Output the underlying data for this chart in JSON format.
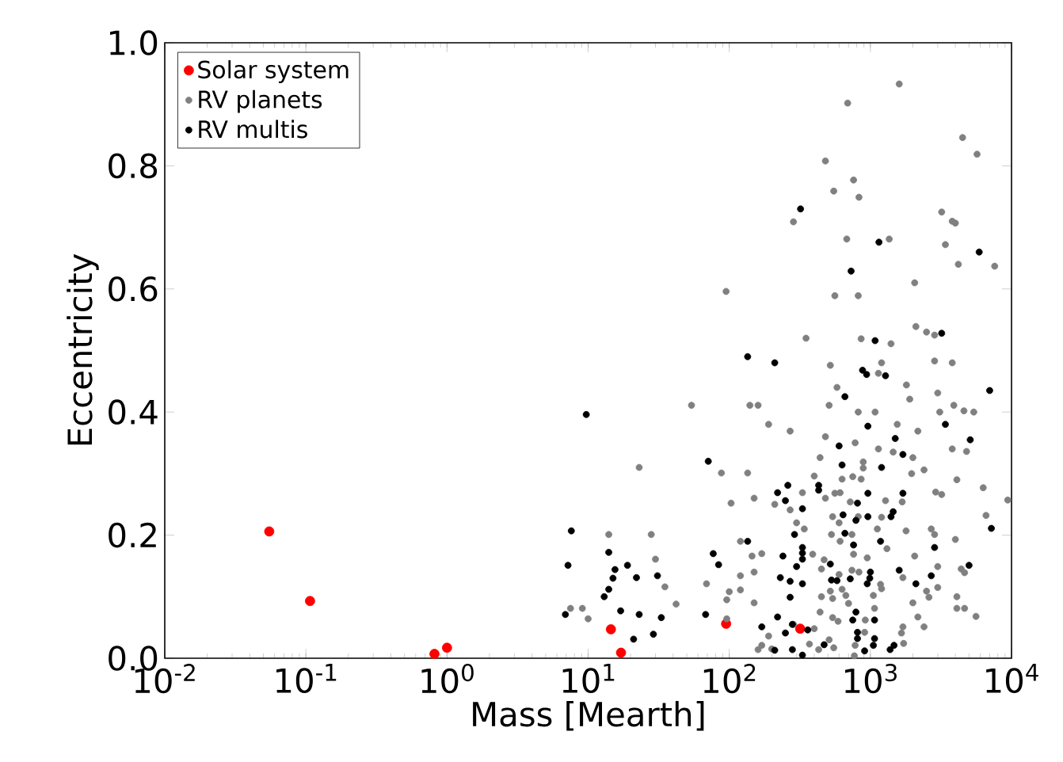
{
  "chart_data": {
    "type": "scatter",
    "xlabel": "Mass [Mearth]",
    "ylabel": "Eccentricity",
    "log": "x",
    "legend": "top left",
    "xlim": [
      0.01,
      10000
    ],
    "ylim": [
      0,
      1
    ],
    "xticks": [
      {
        "value": 0.01,
        "label": "10$^{-2}$"
      },
      {
        "value": 0.1,
        "label": "10$^{-1}$"
      },
      {
        "value": 1,
        "label": "10$^{0}$"
      },
      {
        "value": 10,
        "label": "10$^{1}$"
      },
      {
        "value": 100,
        "label": "10$^{2}$"
      },
      {
        "value": 1000,
        "label": "10$^{3}$"
      },
      {
        "value": 10000,
        "label": "10$^{4}$"
      }
    ],
    "yticks": [
      {
        "value": 0,
        "label": "0.0"
      },
      {
        "value": 0.2,
        "label": "0.2"
      },
      {
        "value": 0.4,
        "label": "0.4"
      },
      {
        "value": 0.6,
        "label": "0.6"
      },
      {
        "value": 0.8,
        "label": "0.8"
      },
      {
        "value": 1,
        "label": "1.0"
      }
    ],
    "series": [
      {
        "name": "Solar system",
        "color": "#ff0000",
        "x": [
          0.055,
          0.107,
          0.815,
          1,
          14.5,
          17.1,
          95,
          318
        ],
        "values": [
          0.206,
          0.093,
          0.007,
          0.017,
          0.047,
          0.009,
          0.056,
          0.048
        ]
      },
      {
        "name": "RV planets",
        "color": "#808080",
        "x": [
          14,
          28,
          30,
          35,
          42,
          23,
          54,
          7.5,
          9.1,
          10,
          88,
          135,
          103,
          150,
          210,
          190,
          140,
          160,
          120,
          145,
          170,
          150,
          120,
          120,
          100,
          96,
          69,
          150,
          96,
          190,
          170,
          160,
          520,
          1200,
          1140,
          2850,
          3800,
          580,
          1800,
          1900,
          3000,
          510,
          820,
          1080,
          3100,
          3900,
          4600,
          5400,
          270,
          1550,
          2170,
          480,
          780,
          1140,
          3800,
          4800,
          440,
          2000,
          890,
          890,
          2400,
          1450,
          1960,
          400,
          630,
          750,
          860,
          4100,
          6300,
          9400,
          330,
          480,
          560,
          610,
          270,
          720,
          1280,
          1680,
          2900,
          3200,
          540,
          820,
          1200,
          300,
          340,
          600,
          1120,
          1790,
          2700,
          2850,
          4000,
          6600,
          530,
          610,
          740,
          760,
          1310,
          950,
          2060,
          390,
          470,
          450,
          600,
          740,
          830,
          1700,
          3000,
          4400,
          4650,
          3000,
          1180,
          1200,
          630,
          520,
          450,
          1050,
          670,
          700,
          540,
          2000,
          2500,
          2600,
          4100,
          4100,
          4650,
          5600,
          440,
          540,
          590,
          1070,
          2170,
          2400,
          920,
          1700,
          1660,
          1720,
          910,
          285,
          400,
          370,
          510,
          780,
          550,
          200,
          430,
          770,
          1600,
          690,
          4500,
          5700,
          480,
          760,
          550,
          830,
          3200,
          3800,
          4000,
          285,
          680,
          1360,
          3400,
          4200,
          7600,
          2060,
          95,
          560,
          820,
          2100,
          2500,
          2850,
          350,
          860,
          1400
        ],
        "values": [
          0.201,
          0.201,
          0.161,
          0.116,
          0.088,
          0.31,
          0.411,
          0.081,
          0.081,
          0.064,
          0.301,
          0.301,
          0.252,
          0.26,
          0.25,
          0.38,
          0.411,
          0.411,
          0.19,
          0.166,
          0.17,
          0.14,
          0.134,
          0.111,
          0.108,
          0.095,
          0.121,
          0.09,
          0.064,
          0.036,
          0.021,
          0.014,
          0.476,
          0.48,
          0.463,
          0.483,
          0.48,
          0.44,
          0.444,
          0.421,
          0.431,
          0.411,
          0.4,
          0.4,
          0.4,
          0.411,
          0.402,
          0.4,
          0.369,
          0.38,
          0.369,
          0.36,
          0.35,
          0.34,
          0.34,
          0.336,
          0.326,
          0.326,
          0.319,
          0.309,
          0.306,
          0.335,
          0.3,
          0.296,
          0.291,
          0.295,
          0.291,
          0.29,
          0.277,
          0.257,
          0.269,
          0.26,
          0.268,
          0.269,
          0.241,
          0.254,
          0.256,
          0.254,
          0.27,
          0.266,
          0.23,
          0.23,
          0.229,
          0.22,
          0.21,
          0.22,
          0.21,
          0.207,
          0.21,
          0.201,
          0.193,
          0.232,
          0.201,
          0.19,
          0.201,
          0.169,
          0.178,
          0.163,
          0.166,
          0.169,
          0.16,
          0.145,
          0.136,
          0.143,
          0.14,
          0.131,
          0.149,
          0.145,
          0.139,
          0.115,
          0.12,
          0.113,
          0.112,
          0.109,
          0.1,
          0.102,
          0.102,
          0.089,
          0.097,
          0.09,
          0.109,
          0.099,
          0.1,
          0.081,
          0.081,
          0.068,
          0.075,
          0.066,
          0.06,
          0.081,
          0.067,
          0.051,
          0.062,
          0.051,
          0.041,
          0.024,
          0.042,
          0.055,
          0.048,
          0.023,
          0.03,
          0.021,
          0.017,
          0.015,
          0.014,
          0.004,
          0.933,
          0.902,
          0.846,
          0.819,
          0.808,
          0.777,
          0.759,
          0.749,
          0.725,
          0.71,
          0.707,
          0.709,
          0.681,
          0.681,
          0.672,
          0.64,
          0.637,
          0.61,
          0.596,
          0.589,
          0.589,
          0.539,
          0.53,
          0.525,
          0.52,
          0.519,
          0.511
        ]
      },
      {
        "name": "RV multis",
        "color": "#000000",
        "x": [
          9.7,
          7.6,
          7.2,
          6.9,
          14,
          15.5,
          15,
          19,
          22,
          14,
          13,
          17,
          23,
          33,
          21,
          29,
          31,
          68,
          77,
          84,
          71,
          135,
          135,
          170,
          210,
          880,
          940,
          1280,
          660,
          7000,
          960,
          3400,
          1500,
          5100,
          1700,
          600,
          630,
          1200,
          430,
          430,
          260,
          220,
          250,
          960,
          1700,
          330,
          810,
          640,
          790,
          960,
          1400,
          1450,
          290,
          660,
          7200,
          760,
          1180,
          330,
          330,
          330,
          240,
          2850,
          300,
          520,
          5000,
          230,
          270,
          330,
          530,
          580,
          720,
          1000,
          990,
          950,
          1600,
          2700,
          2100,
          270,
          790,
          220,
          750,
          1070,
          280,
          250,
          360,
          810,
          810,
          1070,
          1050,
          210,
          280,
          470,
          910,
          1380,
          1470,
          330,
          320,
          1150,
          730,
          5900,
          3200,
          1080
        ],
        "values": [
          0.396,
          0.207,
          0.151,
          0.071,
          0.172,
          0.144,
          0.13,
          0.151,
          0.131,
          0.112,
          0.1,
          0.077,
          0.071,
          0.066,
          0.031,
          0.039,
          0.134,
          0.071,
          0.17,
          0.152,
          0.32,
          0.19,
          0.49,
          0.051,
          0.48,
          0.468,
          0.461,
          0.459,
          0.425,
          0.435,
          0.377,
          0.38,
          0.357,
          0.355,
          0.331,
          0.345,
          0.314,
          0.31,
          0.281,
          0.273,
          0.281,
          0.269,
          0.256,
          0.268,
          0.268,
          0.243,
          0.252,
          0.233,
          0.224,
          0.23,
          0.23,
          0.238,
          0.201,
          0.203,
          0.211,
          0.184,
          0.19,
          0.18,
          0.171,
          0.161,
          0.166,
          0.18,
          0.149,
          0.153,
          0.151,
          0.131,
          0.125,
          0.121,
          0.127,
          0.126,
          0.129,
          0.14,
          0.13,
          0.121,
          0.143,
          0.134,
          0.121,
          0.099,
          0.075,
          0.067,
          0.062,
          0.062,
          0.055,
          0.041,
          0.046,
          0.042,
          0.032,
          0.032,
          0.021,
          0.013,
          0.014,
          0.022,
          0.012,
          0.014,
          0.021,
          0.005,
          0.73,
          0.676,
          0.629,
          0.66,
          0.528,
          0.516
        ]
      }
    ]
  }
}
